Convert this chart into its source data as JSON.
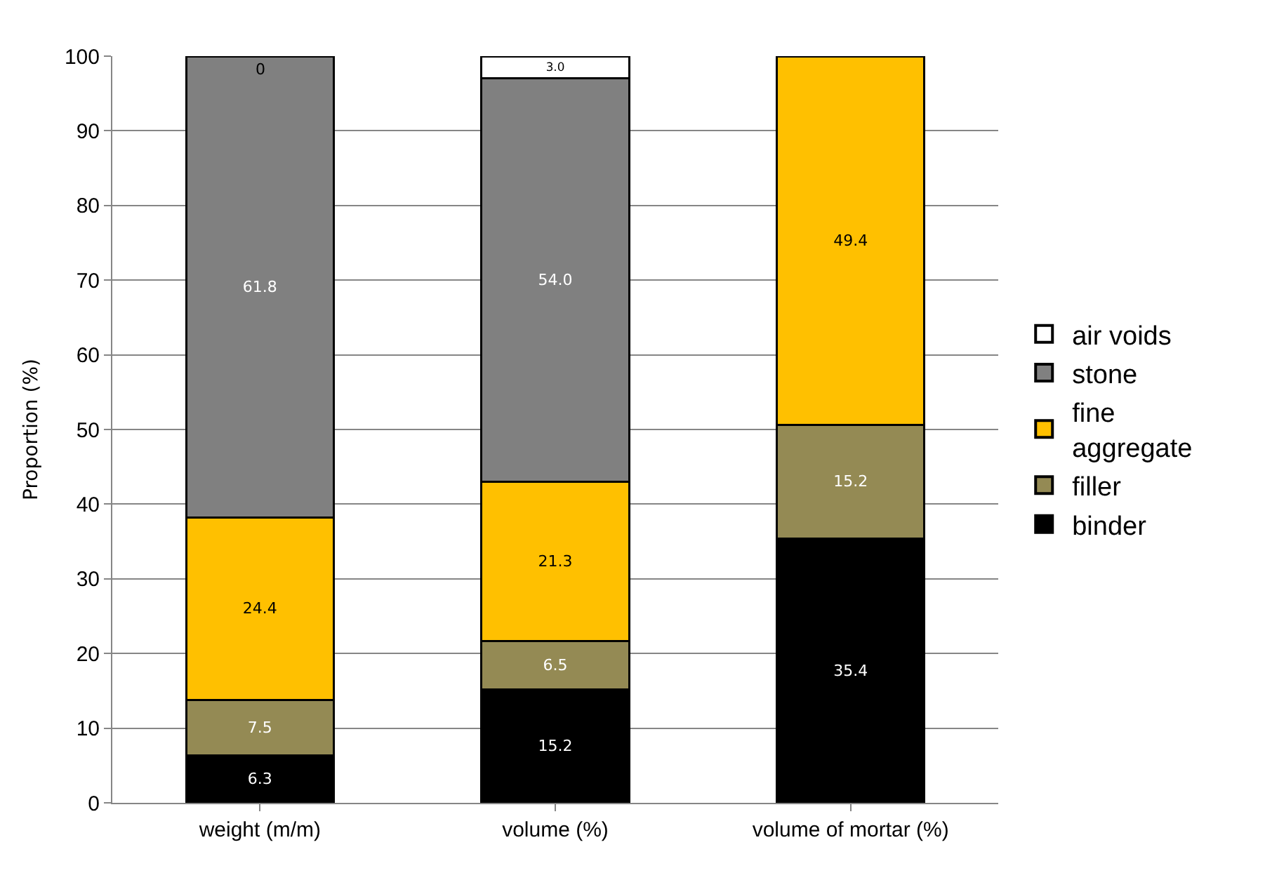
{
  "chart_data": {
    "type": "bar",
    "stacked": true,
    "ylabel": "Proportion (%)",
    "categories": [
      "weight (m/m)",
      "volume (%)",
      "volume of mortar (%)"
    ],
    "series": [
      {
        "name": "binder",
        "color": "#000000",
        "values": [
          6.3,
          15.2,
          35.4
        ],
        "value_labels": [
          "6.3",
          "15.2",
          "35.4"
        ]
      },
      {
        "name": "filler",
        "color": "#948a54",
        "values": [
          7.5,
          6.5,
          15.2
        ],
        "value_labels": [
          "7.5",
          "6.5",
          "15.2"
        ]
      },
      {
        "name": "fine aggregate",
        "color": "#ffc000",
        "values": [
          24.4,
          21.3,
          49.4
        ],
        "value_labels": [
          "24.4",
          "21.3",
          "49.4"
        ]
      },
      {
        "name": "stone",
        "color": "#808080",
        "values": [
          61.8,
          54.0,
          null
        ],
        "value_labels": [
          "61.8",
          "54.0",
          null
        ]
      },
      {
        "name": "air voids",
        "color": "#ffffff",
        "values": [
          0,
          3.0,
          null
        ],
        "value_labels": [
          "0",
          "3.0",
          null
        ]
      }
    ],
    "ylim": [
      0,
      100
    ],
    "yticks": [
      0,
      10,
      20,
      30,
      40,
      50,
      60,
      70,
      80,
      90,
      100
    ],
    "grid": "y",
    "legend": "right"
  }
}
